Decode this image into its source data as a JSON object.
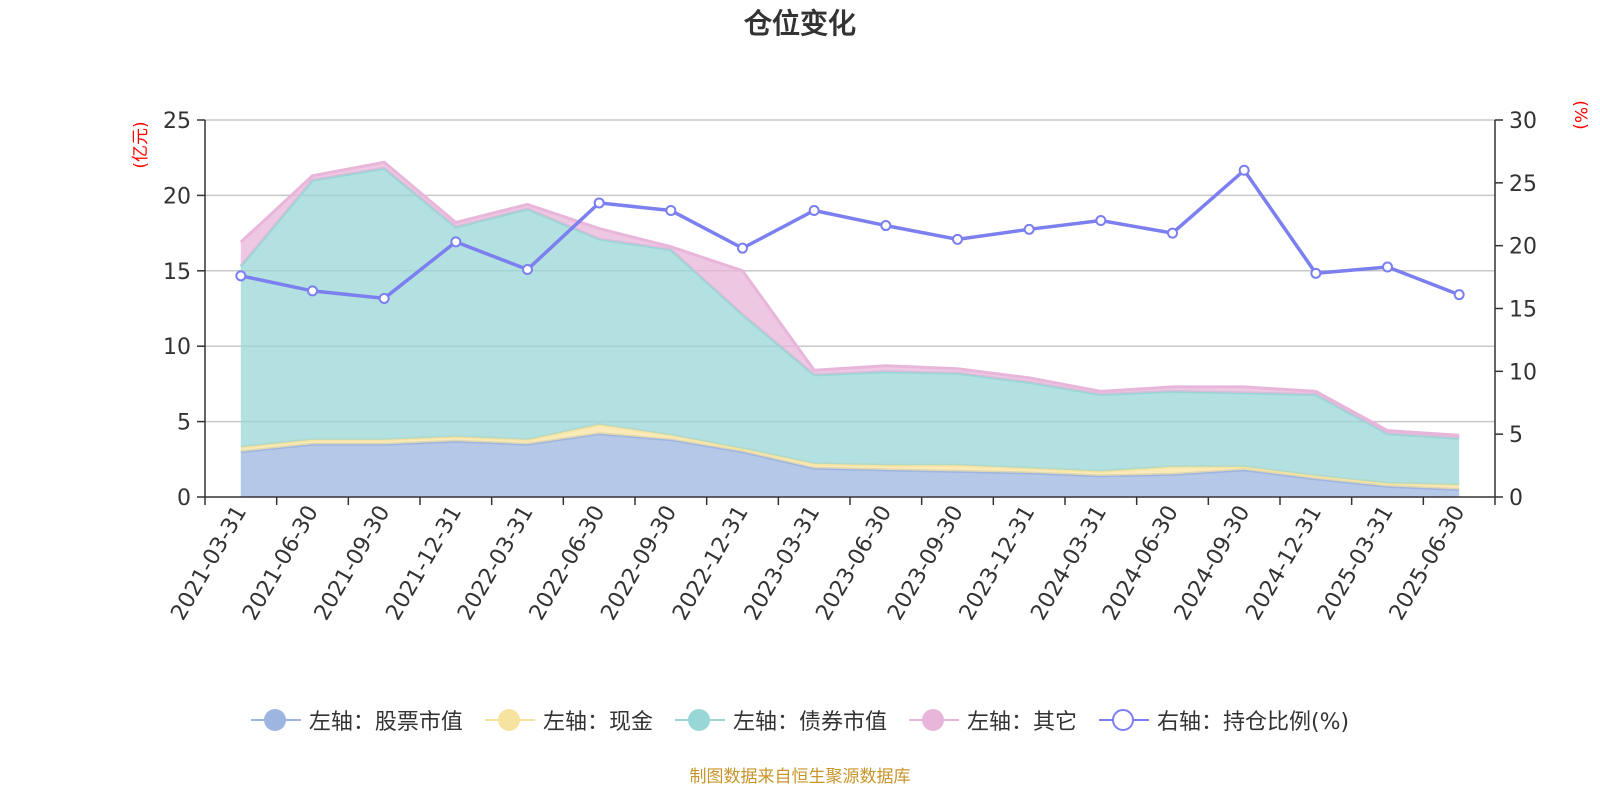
{
  "chart_data": {
    "type": "area",
    "title": "仓位变化",
    "categories": [
      "2021-03-31",
      "2021-06-30",
      "2021-09-30",
      "2021-12-31",
      "2022-03-31",
      "2022-06-30",
      "2022-09-30",
      "2022-12-31",
      "2023-03-31",
      "2023-06-30",
      "2023-09-30",
      "2023-12-31",
      "2024-03-31",
      "2024-06-30",
      "2024-09-30",
      "2024-12-31",
      "2025-03-31",
      "2025-06-30"
    ],
    "left_axis": {
      "unit_label": "(亿元)",
      "ylim": [
        0,
        25
      ],
      "ticks": [
        0,
        5,
        10,
        15,
        20,
        25
      ]
    },
    "right_axis": {
      "unit_label": "(%)",
      "ylim": [
        0,
        30
      ],
      "ticks": [
        0,
        5,
        10,
        15,
        20,
        25,
        30
      ]
    },
    "grid": true,
    "legend_position": "bottom",
    "series": [
      {
        "name": "左轴：股票市值",
        "kind": "stacked-area",
        "axis": "left",
        "color": "#9db5e0",
        "values": [
          3.0,
          3.5,
          3.5,
          3.7,
          3.5,
          4.2,
          3.8,
          3.0,
          1.9,
          1.8,
          1.7,
          1.6,
          1.4,
          1.5,
          1.8,
          1.2,
          0.7,
          0.5
        ]
      },
      {
        "name": "左轴：现金",
        "kind": "stacked-area",
        "axis": "left",
        "color": "#f7e3a0",
        "values": [
          0.3,
          0.3,
          0.3,
          0.3,
          0.3,
          0.6,
          0.3,
          0.2,
          0.3,
          0.3,
          0.4,
          0.3,
          0.3,
          0.5,
          0.2,
          0.2,
          0.2,
          0.3
        ]
      },
      {
        "name": "左轴：债券市值",
        "kind": "stacked-area",
        "axis": "left",
        "color": "#99d6d6",
        "values": [
          12.0,
          17.2,
          18.0,
          13.9,
          15.3,
          12.3,
          12.3,
          8.9,
          5.9,
          6.2,
          6.1,
          5.7,
          5.1,
          5.0,
          4.9,
          5.4,
          3.3,
          3.1
        ]
      },
      {
        "name": "左轴：其它",
        "kind": "stacked-area",
        "axis": "left",
        "color": "#e8b6da",
        "values": [
          1.6,
          0.3,
          0.4,
          0.3,
          0.3,
          0.7,
          0.2,
          2.9,
          0.3,
          0.4,
          0.3,
          0.3,
          0.2,
          0.3,
          0.4,
          0.2,
          0.2,
          0.2
        ]
      },
      {
        "name": "右轴：持仓比例(%)",
        "kind": "line",
        "axis": "right",
        "color": "#7b7ff0",
        "values": [
          17.6,
          16.4,
          15.8,
          20.3,
          18.1,
          23.4,
          22.8,
          19.8,
          22.8,
          21.6,
          20.5,
          21.3,
          22.0,
          21.0,
          26.0,
          17.8,
          18.3,
          16.1
        ]
      }
    ]
  },
  "source_note": "制图数据来自恒生聚源数据库"
}
